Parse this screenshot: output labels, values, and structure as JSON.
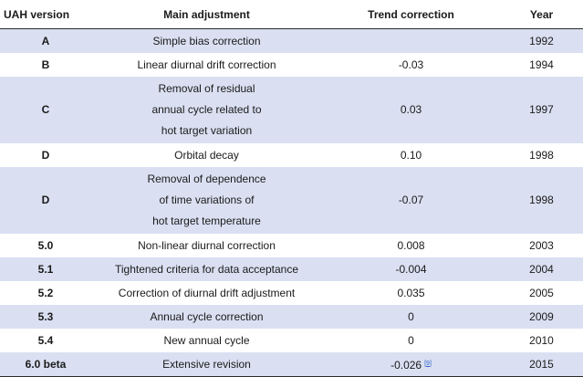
{
  "table": {
    "headers": [
      "UAH version",
      "Main adjustment",
      "Trend correction",
      "Year"
    ],
    "rows": [
      {
        "version": "A",
        "adjustment": [
          "Simple bias correction"
        ],
        "trend": "",
        "year": "1992"
      },
      {
        "version": "B",
        "adjustment": [
          "Linear diurnal drift correction"
        ],
        "trend": "-0.03",
        "year": "1994"
      },
      {
        "version": "C",
        "adjustment": [
          "Removal of residual",
          "annual cycle related to",
          "hot target variation"
        ],
        "trend": "0.03",
        "year": "1997"
      },
      {
        "version": "D",
        "adjustment": [
          "Orbital decay"
        ],
        "trend": "0.10",
        "year": "1998"
      },
      {
        "version": "D",
        "adjustment": [
          "Removal of dependence",
          "of time variations of",
          "hot target temperature"
        ],
        "trend": "-0.07",
        "year": "1998"
      },
      {
        "version": "5.0",
        "adjustment": [
          "Non-linear diurnal correction"
        ],
        "trend": "0.008",
        "year": "2003"
      },
      {
        "version": "5.1",
        "adjustment": [
          "Tightened criteria for data acceptance"
        ],
        "trend": "-0.004",
        "year": "2004"
      },
      {
        "version": "5.2",
        "adjustment": [
          "Correction of diurnal drift adjustment"
        ],
        "trend": "0.035",
        "year": "2005"
      },
      {
        "version": "5.3",
        "adjustment": [
          "Annual cycle correction"
        ],
        "trend": "0",
        "year": "2009"
      },
      {
        "version": "5.4",
        "adjustment": [
          "New annual cycle"
        ],
        "trend": "0",
        "year": "2010"
      },
      {
        "version": "6.0 beta",
        "adjustment": [
          "Extensive revision"
        ],
        "trend": "-0.026",
        "trend_ref": "[9]",
        "year": "2015"
      }
    ]
  },
  "colors": {
    "shaded_row": "#dae0f2",
    "rule": "#2b2b2b",
    "reference_link": "#3366cc"
  }
}
